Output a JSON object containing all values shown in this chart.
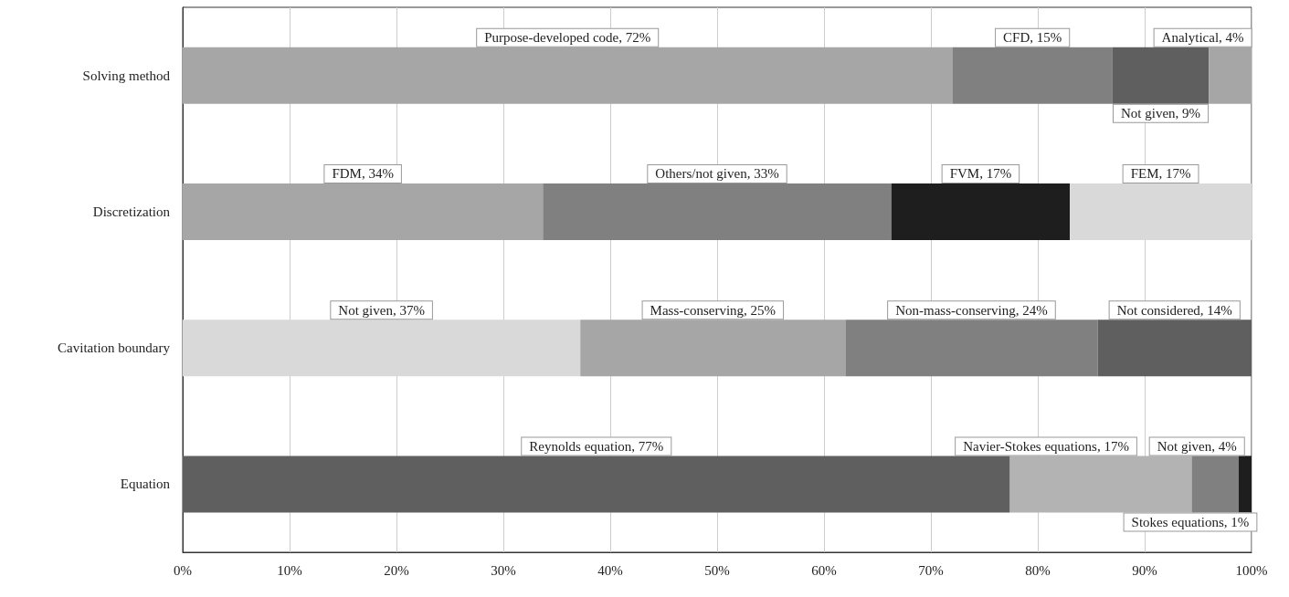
{
  "chart_data": {
    "type": "bar",
    "orientation": "horizontal",
    "stacked": true,
    "categories": [
      "Solving method",
      "Discretization",
      "Cavitation boundary",
      "Equation"
    ],
    "xlim": [
      0,
      100
    ],
    "xticks": [
      {
        "value": 0,
        "label": "0%"
      },
      {
        "value": 10,
        "label": "10%"
      },
      {
        "value": 20,
        "label": "20%"
      },
      {
        "value": 30,
        "label": "30%"
      },
      {
        "value": 40,
        "label": "40%"
      },
      {
        "value": 50,
        "label": "50%"
      },
      {
        "value": 60,
        "label": "60%"
      },
      {
        "value": 70,
        "label": "70%"
      },
      {
        "value": 80,
        "label": "80%"
      },
      {
        "value": 90,
        "label": "90%"
      },
      {
        "value": 100,
        "label": "100%"
      }
    ],
    "grid": "x",
    "series": [
      {
        "colors": [
          "#a6a6a6",
          "#a6a6a6",
          "#d9d9d9",
          "#5f5f5f"
        ],
        "values": [
          72,
          33.7,
          37.2,
          77.4
        ],
        "value_labels": [
          "Purpose-developed code, 72%",
          "FDM, 34%",
          "Not given, 37%",
          "Reynolds equation, 77%"
        ]
      },
      {
        "colors": [
          "#808080",
          "#808080",
          "#a6a6a6",
          "#b3b3b3"
        ],
        "values": [
          15,
          32.6,
          24.8,
          17
        ],
        "value_labels": [
          "CFD, 15%",
          "Others/not given, 33%",
          "Mass-conserving, 25%",
          "Navier-Stokes equations, 17%"
        ]
      },
      {
        "colors": [
          "#5f5f5f",
          "#1e1e1e",
          "#808080",
          "#808080"
        ],
        "values": [
          9,
          16.7,
          23.6,
          4.4
        ],
        "value_labels": [
          "Not given, 9%",
          "FVM, 17%",
          "Non-mass-conserving, 24%",
          "Not given, 4%"
        ]
      },
      {
        "colors": [
          "#a6a6a6",
          "#d9d9d9",
          "#5f5f5f",
          "#1e1e1e"
        ],
        "values": [
          4,
          17,
          14.4,
          1.2
        ],
        "value_labels": [
          "Analytical, 4%",
          "FEM, 17%",
          "Not considered, 14%",
          "Stokes equations, 1%"
        ]
      }
    ]
  }
}
